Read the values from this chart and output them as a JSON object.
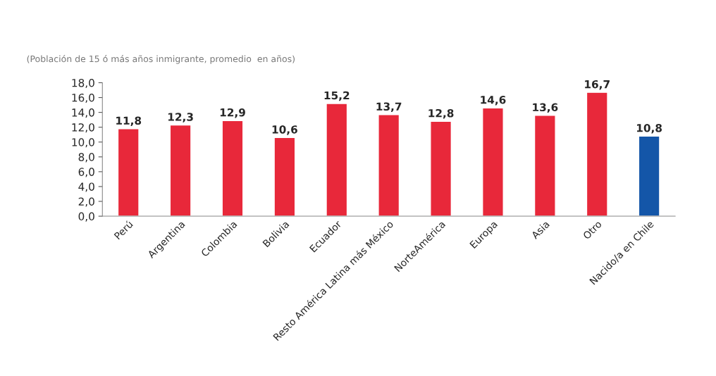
{
  "chart_data": {
    "type": "bar",
    "title": "(Población de 15 ó más años inmigrante, promedio  en años)",
    "categories": [
      "Perú",
      "Argentina",
      "Colombia",
      "Bolivia",
      "Ecuador",
      "Resto América Latina más México",
      "NorteAmérica",
      "Europa",
      "Asia",
      "Otro",
      "Nacido/a en Chile"
    ],
    "values": [
      11.8,
      12.3,
      12.9,
      10.6,
      15.2,
      13.7,
      12.8,
      14.6,
      13.6,
      16.7,
      10.8
    ],
    "value_labels": [
      "11,8",
      "12,3",
      "12,9",
      "10,6",
      "15,2",
      "13,7",
      "12,8",
      "14,6",
      "13,6",
      "16,7",
      "10,8"
    ],
    "colors": [
      "#e8283a",
      "#e8283a",
      "#e8283a",
      "#e8283a",
      "#e8283a",
      "#e8283a",
      "#e8283a",
      "#e8283a",
      "#e8283a",
      "#e8283a",
      "#1456a8"
    ],
    "ylim": [
      0,
      18
    ],
    "yticks": [
      {
        "value": 0,
        "label": "0,0"
      },
      {
        "value": 2,
        "label": "2,0"
      },
      {
        "value": 4,
        "label": "4,0"
      },
      {
        "value": 6,
        "label": "6,0"
      },
      {
        "value": 8,
        "label": "8,0"
      },
      {
        "value": 10,
        "label": "10,0"
      },
      {
        "value": 12,
        "label": "12,0"
      },
      {
        "value": 14,
        "label": "14,0"
      },
      {
        "value": 16,
        "label": "16,0"
      },
      {
        "value": 18,
        "label": "18,0"
      }
    ],
    "grid": false,
    "legend": false
  }
}
